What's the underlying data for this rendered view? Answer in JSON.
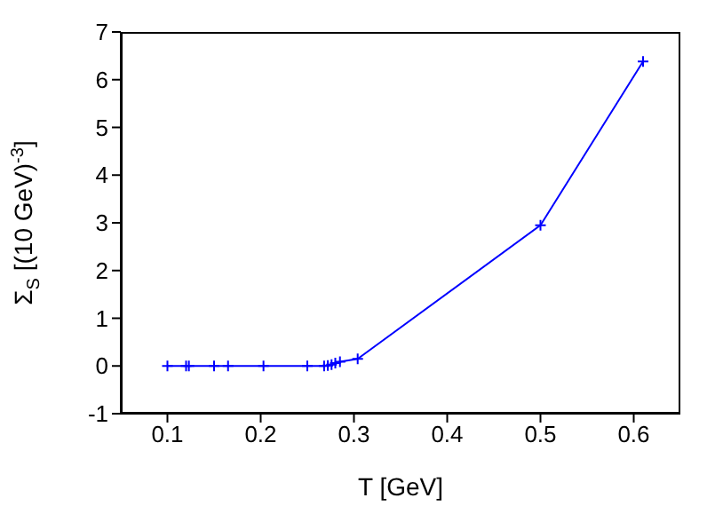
{
  "chart_data": {
    "type": "line",
    "xlabel": "T [GeV]",
    "ylabel": "Σ$_{S}$ [(10 GeV)$^{-3}$]",
    "x": [
      0.1,
      0.12,
      0.123,
      0.15,
      0.165,
      0.203,
      0.25,
      0.268,
      0.272,
      0.276,
      0.28,
      0.285,
      0.304,
      0.5,
      0.61
    ],
    "series": [
      {
        "color": "#0000ff",
        "values": [
          0,
          0,
          0,
          0,
          0,
          0,
          0,
          0,
          0.01,
          0.03,
          0.06,
          0.09,
          0.15,
          2.95,
          6.38
        ]
      }
    ],
    "xlim": [
      0.05,
      0.65
    ],
    "xticks": [
      0.1,
      0.2,
      0.3,
      0.4,
      0.5,
      0.6
    ],
    "ylim": [
      -1,
      7
    ],
    "yticks": [
      -1,
      0,
      1,
      2,
      3,
      4,
      5,
      6,
      7
    ],
    "grid": false,
    "marker": "cross",
    "line_style": "solid"
  }
}
